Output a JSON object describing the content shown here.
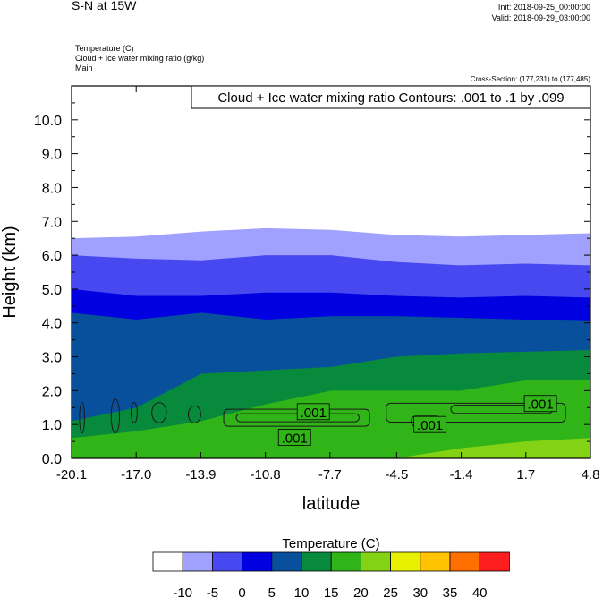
{
  "header": {
    "title": "S-N at 15W",
    "init": "Init: 2018-09-25_00:00:00",
    "valid": "Valid: 2018-09-29_03:00:00",
    "field1": "Temperature   (C)",
    "field2": "Cloud + Ice water mixing ratio   (g/kg)",
    "field3": "Main",
    "cross_section": "Cross-Section: (177,231) to (177,485)"
  },
  "chart_data": {
    "type": "contour",
    "xlabel": "latitude",
    "ylabel": "Height (km)",
    "x_ticks": [
      "-20.1",
      "-17.0",
      "-13.9",
      "-10.8",
      "-7.7",
      "-4.5",
      "-1.4",
      "1.7",
      "4.8"
    ],
    "x_range": [
      -20.1,
      4.8
    ],
    "y_ticks": [
      "0.0",
      "1.0",
      "2.0",
      "3.0",
      "4.0",
      "5.0",
      "6.0",
      "7.0",
      "8.0",
      "9.0",
      "10.0"
    ],
    "y_range": [
      0,
      11
    ],
    "contour_title": "Cloud + Ice water mixing ratio Contours: .001 to .1 by .099",
    "contour_labels": [
      ".001",
      ".001",
      ".001",
      ".001"
    ],
    "colorbar": {
      "title": "Temperature  (C)",
      "labels": [
        "-10",
        "-5",
        "0",
        "5",
        "10",
        "15",
        "20",
        "25",
        "30",
        "35",
        "40"
      ],
      "colors": [
        "#ffffff",
        "#a0a0ff",
        "#4848f0",
        "#0000e0",
        "#08509c",
        "#088a3c",
        "#30b418",
        "#84d214",
        "#e6f000",
        "#ffc300",
        "#ff6e00",
        "#ff1e1e"
      ]
    },
    "temperature_layers": [
      {
        "level": "-10",
        "color": "#a0a0ff",
        "top_km": [
          6.5,
          6.55,
          6.7,
          6.8,
          6.75,
          6.6,
          6.55,
          6.6,
          6.65
        ]
      },
      {
        "level": "-5",
        "color": "#4848f0",
        "top_km": [
          6.0,
          5.9,
          5.85,
          6.0,
          6.0,
          5.8,
          5.7,
          5.75,
          5.7
        ]
      },
      {
        "level": "0",
        "color": "#0000e0",
        "top_km": [
          5.0,
          4.8,
          4.8,
          4.9,
          4.9,
          4.8,
          4.75,
          4.8,
          4.75
        ]
      },
      {
        "level": "5",
        "color": "#08509c",
        "top_km": [
          4.3,
          4.1,
          4.3,
          4.1,
          4.2,
          4.2,
          4.15,
          4.1,
          4.05
        ]
      },
      {
        "level": "10",
        "color": "#088a3c",
        "top_km": [
          1.1,
          1.5,
          2.5,
          2.6,
          2.7,
          3.0,
          3.1,
          3.15,
          3.2
        ]
      },
      {
        "level": "15",
        "color": "#30b418",
        "top_km": [
          0.6,
          0.8,
          1.1,
          1.6,
          2.0,
          2.0,
          2.0,
          2.3,
          2.3
        ]
      },
      {
        "level": "20",
        "color": "#84d214",
        "top_km": [
          0.0,
          0.0,
          0.0,
          0.0,
          0.0,
          0.0,
          0.3,
          0.5,
          0.6
        ]
      }
    ]
  }
}
